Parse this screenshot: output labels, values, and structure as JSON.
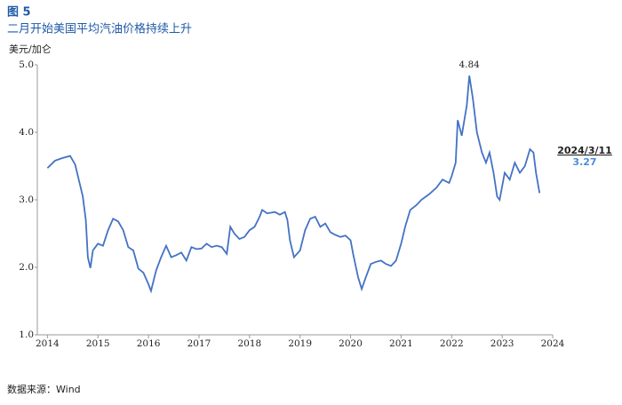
{
  "chart_data": {
    "type": "line",
    "title": "图 5",
    "subtitle": "二月开始美国平均汽油价格持续上升",
    "y_label": "美元/加仑",
    "source": "数据来源：Wind",
    "peak_annotation": "4.84",
    "side_date": "2024/3/11",
    "side_value": "3.27",
    "xlim": [
      2013.8,
      2024
    ],
    "xticks": [
      2014,
      2015,
      2016,
      2017,
      2018,
      2019,
      2020,
      2021,
      2022,
      2023,
      2024
    ],
    "ylim": [
      1,
      5
    ],
    "yticks": [
      {
        "value": 1,
        "label": "1.0"
      },
      {
        "value": 2,
        "label": "2.0"
      },
      {
        "value": 3,
        "label": "3.0"
      },
      {
        "value": 4,
        "label": "4.0"
      },
      {
        "value": 5,
        "label": "5.0"
      }
    ],
    "x": [
      2014.0,
      2014.15,
      2014.3,
      2014.45,
      2014.55,
      2014.62,
      2014.7,
      2014.76,
      2014.8,
      2014.85,
      2014.9,
      2015.0,
      2015.1,
      2015.2,
      2015.3,
      2015.4,
      2015.5,
      2015.6,
      2015.7,
      2015.8,
      2015.9,
      2016.0,
      2016.05,
      2016.15,
      2016.25,
      2016.35,
      2016.45,
      2016.55,
      2016.65,
      2016.75,
      2016.85,
      2016.95,
      2017.05,
      2017.15,
      2017.25,
      2017.35,
      2017.45,
      2017.55,
      2017.62,
      2017.7,
      2017.8,
      2017.9,
      2018.0,
      2018.1,
      2018.2,
      2018.25,
      2018.35,
      2018.5,
      2018.6,
      2018.7,
      2018.75,
      2018.8,
      2018.88,
      2019.0,
      2019.1,
      2019.2,
      2019.3,
      2019.4,
      2019.5,
      2019.6,
      2019.7,
      2019.8,
      2019.9,
      2020.0,
      2020.05,
      2020.15,
      2020.22,
      2020.3,
      2020.4,
      2020.5,
      2020.6,
      2020.7,
      2020.8,
      2020.9,
      2021.0,
      2021.08,
      2021.18,
      2021.3,
      2021.4,
      2021.55,
      2021.7,
      2021.82,
      2021.95,
      2022.0,
      2022.08,
      2022.12,
      2022.2,
      2022.3,
      2022.35,
      2022.42,
      2022.5,
      2022.6,
      2022.68,
      2022.75,
      2022.83,
      2022.9,
      2022.95,
      2023.05,
      2023.15,
      2023.25,
      2023.35,
      2023.45,
      2023.55,
      2023.62,
      2023.67,
      2023.74
    ],
    "series": [
      {
        "color": "#4472c4",
        "values": [
          3.47,
          3.58,
          3.62,
          3.65,
          3.52,
          3.3,
          3.05,
          2.7,
          2.15,
          1.99,
          2.25,
          2.35,
          2.32,
          2.55,
          2.72,
          2.68,
          2.55,
          2.3,
          2.25,
          1.98,
          1.92,
          1.75,
          1.65,
          1.95,
          2.15,
          2.32,
          2.15,
          2.18,
          2.22,
          2.1,
          2.3,
          2.27,
          2.28,
          2.35,
          2.3,
          2.32,
          2.3,
          2.2,
          2.6,
          2.5,
          2.42,
          2.45,
          2.55,
          2.6,
          2.75,
          2.85,
          2.8,
          2.82,
          2.78,
          2.82,
          2.7,
          2.4,
          2.15,
          2.25,
          2.55,
          2.72,
          2.75,
          2.6,
          2.65,
          2.52,
          2.48,
          2.45,
          2.47,
          2.4,
          2.2,
          1.85,
          1.68,
          1.85,
          2.05,
          2.08,
          2.1,
          2.05,
          2.02,
          2.1,
          2.35,
          2.6,
          2.85,
          2.92,
          3.0,
          3.08,
          3.18,
          3.3,
          3.25,
          3.35,
          3.55,
          4.18,
          3.95,
          4.4,
          4.84,
          4.5,
          4.0,
          3.7,
          3.55,
          3.7,
          3.4,
          3.05,
          3.0,
          3.4,
          3.3,
          3.55,
          3.4,
          3.5,
          3.75,
          3.7,
          3.4,
          3.1
        ]
      }
    ]
  }
}
